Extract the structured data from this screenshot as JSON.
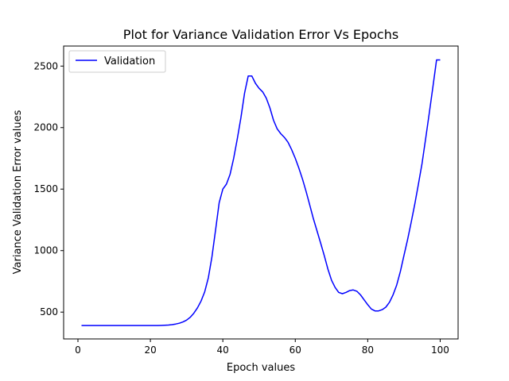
{
  "chart_data": {
    "type": "line",
    "title": "Plot for Variance Validation Error Vs Epochs",
    "xlabel": "Epoch values",
    "ylabel": "Variance Validation Error values",
    "xlim": [
      -3.95,
      104.95
    ],
    "ylim": [
      282,
      2663
    ],
    "xticks": [
      0,
      20,
      40,
      60,
      80,
      100
    ],
    "xtick_labels": [
      "0",
      "20",
      "40",
      "60",
      "80",
      "100"
    ],
    "yticks": [
      500,
      1000,
      1500,
      2000,
      2500
    ],
    "ytick_labels": [
      "500",
      "1000",
      "1500",
      "2000",
      "2500"
    ],
    "grid": false,
    "legend": {
      "position": "upper-left",
      "entries": [
        "Validation"
      ]
    },
    "series": [
      {
        "name": "Validation",
        "color": "#0000ff",
        "x": [
          1,
          2,
          3,
          4,
          5,
          6,
          7,
          8,
          9,
          10,
          11,
          12,
          13,
          14,
          15,
          16,
          17,
          18,
          19,
          20,
          21,
          22,
          23,
          24,
          25,
          26,
          27,
          28,
          29,
          30,
          31,
          32,
          33,
          34,
          35,
          36,
          37,
          38,
          39,
          40,
          41,
          42,
          43,
          44,
          45,
          46,
          47,
          48,
          49,
          50,
          51,
          52,
          53,
          54,
          55,
          56,
          57,
          58,
          59,
          60,
          61,
          62,
          63,
          64,
          65,
          66,
          67,
          68,
          69,
          70,
          71,
          72,
          73,
          74,
          75,
          76,
          77,
          78,
          79,
          80,
          81,
          82,
          83,
          84,
          85,
          86,
          87,
          88,
          89,
          90,
          91,
          92,
          93,
          94,
          95,
          96,
          97,
          98,
          99,
          100
        ],
        "y": [
          391,
          391,
          391,
          391,
          391,
          391,
          391,
          391,
          391,
          391,
          391,
          391,
          391,
          391,
          391,
          391,
          391,
          391,
          391,
          391,
          391,
          391,
          392,
          393,
          395,
          398,
          403,
          410,
          420,
          435,
          458,
          491,
          535,
          590,
          665,
          780,
          950,
          1170,
          1390,
          1500,
          1540,
          1620,
          1750,
          1910,
          2080,
          2280,
          2420,
          2420,
          2360,
          2320,
          2290,
          2240,
          2160,
          2060,
          1990,
          1950,
          1920,
          1880,
          1820,
          1750,
          1670,
          1580,
          1480,
          1370,
          1260,
          1160,
          1060,
          960,
          850,
          760,
          700,
          660,
          650,
          660,
          675,
          680,
          670,
          640,
          600,
          560,
          525,
          510,
          510,
          520,
          540,
          580,
          640,
          720,
          830,
          960,
          1090,
          1230,
          1380,
          1540,
          1710,
          1910,
          2120,
          2330,
          2550,
          2550
        ]
      }
    ]
  }
}
